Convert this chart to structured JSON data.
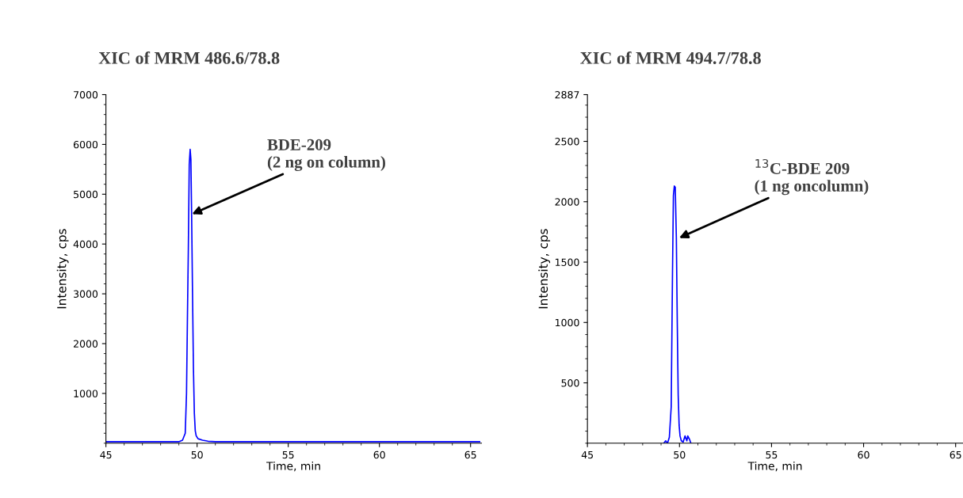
{
  "chart_data": [
    {
      "type": "line",
      "title": "XIC of MRM 486.6/78.8",
      "xlabel": "Time, min",
      "ylabel": "Intensity, cps",
      "xlim": [
        45,
        65.6
      ],
      "xticks": [
        45,
        50,
        55,
        60,
        65
      ],
      "ylim": [
        0,
        7000
      ],
      "yticks": [
        1000,
        2000,
        3000,
        4000,
        5000,
        6000,
        7000
      ],
      "grid": false,
      "legend": false,
      "marker": "none",
      "series": [
        {
          "color": "#0000ff",
          "x": [
            45,
            47,
            49.0,
            49.2,
            49.35,
            49.42,
            49.47,
            49.52,
            49.57,
            49.62,
            49.66,
            49.7,
            49.75,
            49.8,
            49.85,
            49.9,
            49.95,
            50.05,
            50.3,
            50.6,
            51,
            53,
            56,
            60,
            65.5
          ],
          "values": [
            30,
            30,
            30,
            60,
            200,
            1000,
            2500,
            3900,
            5600,
            5900,
            5700,
            4600,
            3000,
            1500,
            600,
            250,
            150,
            90,
            60,
            40,
            30,
            30,
            30,
            30,
            30
          ]
        }
      ],
      "annotations": [
        {
          "text": "BDE-209\n(2 ng on column)",
          "x": 49.72,
          "y": 4600
        }
      ]
    },
    {
      "type": "line",
      "title": "XIC of MRM 494.7/78.8",
      "xlabel": "Time, min",
      "ylabel": "Intensity, cps",
      "xlim": [
        45,
        65.4
      ],
      "xticks": [
        45,
        50,
        55,
        60,
        65
      ],
      "ylim": [
        0,
        2887
      ],
      "yticks": [
        500,
        1000,
        1500,
        2000,
        2500,
        2887
      ],
      "grid": false,
      "legend": false,
      "marker": "none",
      "series": [
        {
          "color": "#0000ff",
          "x": [
            49.15,
            49.25,
            49.35,
            49.45,
            49.55,
            49.62,
            49.67,
            49.72,
            49.77,
            49.83,
            49.88,
            49.93,
            49.98,
            50.03,
            50.1,
            50.2,
            50.3,
            50.4,
            50.45,
            50.55,
            50.62
          ],
          "values": [
            0,
            20,
            0,
            50,
            300,
            1400,
            2050,
            2130,
            2120,
            1700,
            1000,
            400,
            150,
            60,
            20,
            10,
            60,
            20,
            60,
            30,
            0
          ]
        }
      ],
      "annotations": [
        {
          "text": "$^{13}$C-BDE 209\n(1 ng oncolumn)",
          "x": 49.98,
          "y": 1700
        }
      ]
    }
  ]
}
